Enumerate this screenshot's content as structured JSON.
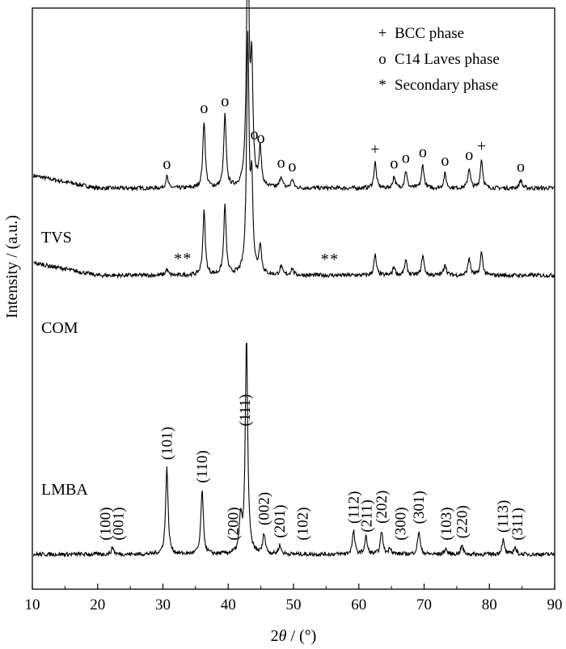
{
  "chart_data": {
    "type": "line",
    "xlabel": "2θ / (°)",
    "ylabel": "Intensity / (a.u.)",
    "xlim": [
      10,
      90
    ],
    "xticks": [
      10,
      20,
      30,
      40,
      50,
      60,
      70,
      80,
      90
    ],
    "y_ticks_shown": false,
    "legend": {
      "placement": "top-right",
      "entries": [
        {
          "symbol": "+",
          "label": "BCC phase"
        },
        {
          "symbol": "o",
          "label": "C14 Laves phase"
        },
        {
          "symbol": "*",
          "label": "Secondary phase"
        }
      ]
    },
    "series": [
      {
        "name": "TVS",
        "relative_baseline": 0.69,
        "peaks": [
          {
            "x": 30.6,
            "h": 0.02
          },
          {
            "x": 36.3,
            "h": 0.115
          },
          {
            "x": 39.5,
            "h": 0.125
          },
          {
            "x": 43.0,
            "h": 0.45
          },
          {
            "x": 43.6,
            "h": 0.2
          },
          {
            "x": 44.9,
            "h": 0.065
          },
          {
            "x": 48.1,
            "h": 0.02
          },
          {
            "x": 49.8,
            "h": 0.015
          },
          {
            "x": 62.5,
            "h": 0.045
          },
          {
            "x": 65.4,
            "h": 0.02
          },
          {
            "x": 67.2,
            "h": 0.03
          },
          {
            "x": 69.8,
            "h": 0.04
          },
          {
            "x": 73.2,
            "h": 0.025
          },
          {
            "x": 76.9,
            "h": 0.035
          },
          {
            "x": 78.8,
            "h": 0.05
          },
          {
            "x": 84.8,
            "h": 0.015
          }
        ],
        "markers": [
          {
            "x": 30.6,
            "symbol": "o"
          },
          {
            "x": 36.3,
            "symbol": "o"
          },
          {
            "x": 39.5,
            "symbol": "o"
          },
          {
            "x": 43.0,
            "symbol": "+"
          },
          {
            "x": 44.0,
            "symbol": "o"
          },
          {
            "x": 45.0,
            "symbol": "o"
          },
          {
            "x": 48.1,
            "symbol": "o"
          },
          {
            "x": 49.8,
            "symbol": "o"
          },
          {
            "x": 62.5,
            "symbol": "+"
          },
          {
            "x": 65.4,
            "symbol": "o"
          },
          {
            "x": 67.2,
            "symbol": "o"
          },
          {
            "x": 69.8,
            "symbol": "o"
          },
          {
            "x": 73.2,
            "symbol": "o"
          },
          {
            "x": 76.9,
            "symbol": "o"
          },
          {
            "x": 78.8,
            "symbol": "+"
          },
          {
            "x": 84.8,
            "symbol": "o"
          }
        ]
      },
      {
        "name": "COM",
        "relative_baseline": 0.54,
        "peaks": [
          {
            "x": 30.6,
            "h": 0.01
          },
          {
            "x": 36.3,
            "h": 0.11
          },
          {
            "x": 39.5,
            "h": 0.12
          },
          {
            "x": 43.0,
            "h": 0.4
          },
          {
            "x": 43.6,
            "h": 0.15
          },
          {
            "x": 44.9,
            "h": 0.05
          },
          {
            "x": 48.1,
            "h": 0.015
          },
          {
            "x": 49.8,
            "h": 0.012
          },
          {
            "x": 62.5,
            "h": 0.035
          },
          {
            "x": 65.4,
            "h": 0.015
          },
          {
            "x": 67.2,
            "h": 0.025
          },
          {
            "x": 69.8,
            "h": 0.035
          },
          {
            "x": 73.2,
            "h": 0.02
          },
          {
            "x": 76.9,
            "h": 0.03
          },
          {
            "x": 78.8,
            "h": 0.04
          }
        ],
        "markers": [
          {
            "x": 32.3,
            "symbol": "*"
          },
          {
            "x": 33.7,
            "symbol": "*"
          },
          {
            "x": 54.8,
            "symbol": "*"
          },
          {
            "x": 56.2,
            "symbol": "*"
          }
        ]
      },
      {
        "name": "LMBA",
        "relative_baseline": 0.06,
        "peaks": [
          {
            "x": 22.3,
            "h": 0.012
          },
          {
            "x": 30.6,
            "h": 0.15
          },
          {
            "x": 36.0,
            "h": 0.11
          },
          {
            "x": 41.9,
            "h": 0.06
          },
          {
            "x": 42.8,
            "h": 0.37
          },
          {
            "x": 45.5,
            "h": 0.035
          },
          {
            "x": 47.9,
            "h": 0.015
          },
          {
            "x": 59.2,
            "h": 0.04
          },
          {
            "x": 61.1,
            "h": 0.03
          },
          {
            "x": 63.5,
            "h": 0.04
          },
          {
            "x": 64.8,
            "h": 0.012
          },
          {
            "x": 69.2,
            "h": 0.04
          },
          {
            "x": 73.3,
            "h": 0.01
          },
          {
            "x": 75.8,
            "h": 0.015
          },
          {
            "x": 82.1,
            "h": 0.025
          },
          {
            "x": 83.9,
            "h": 0.012
          }
        ],
        "miller_labels": [
          {
            "x": 21.2,
            "label": "(100)"
          },
          {
            "x": 23.2,
            "label": "(001)"
          },
          {
            "x": 30.6,
            "label": "(101)"
          },
          {
            "x": 36.0,
            "label": "(110)"
          },
          {
            "x": 40.8,
            "label": "(200)"
          },
          {
            "x": 42.6,
            "label": "(111)"
          },
          {
            "x": 45.5,
            "label": "(002)"
          },
          {
            "x": 47.9,
            "label": "(201)"
          },
          {
            "x": 51.4,
            "label": "(102)"
          },
          {
            "x": 59.2,
            "label": "(112)"
          },
          {
            "x": 61.2,
            "label": "(211)"
          },
          {
            "x": 63.5,
            "label": "(202)"
          },
          {
            "x": 66.4,
            "label": "(300)"
          },
          {
            "x": 69.2,
            "label": "(301)"
          },
          {
            "x": 73.4,
            "label": "(103)"
          },
          {
            "x": 75.8,
            "label": "(220)"
          },
          {
            "x": 82.1,
            "label": "(113)"
          },
          {
            "x": 84.3,
            "label": "(311)"
          }
        ]
      }
    ]
  }
}
